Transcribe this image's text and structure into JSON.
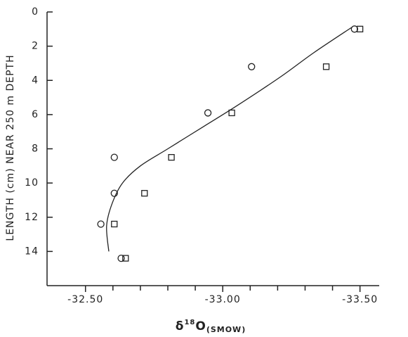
{
  "chart_data": {
    "type": "scatter",
    "ylabel": "LENGTH (cm) NEAR 250 m DEPTH",
    "xlabel": {
      "symbol": "δ",
      "superscript": "18",
      "base": "O",
      "subscript": "(SMOW)"
    },
    "xlim": [
      -32.36,
      -33.57
    ],
    "xticks": [
      {
        "value": -32.5,
        "label": "-32.50"
      },
      {
        "value": -33.0,
        "label": "-33.00"
      },
      {
        "value": -33.5,
        "label": "-33.50"
      }
    ],
    "xminorticks": [
      -32.6,
      -32.7,
      -32.8,
      -32.9,
      -33.1,
      -33.2,
      -33.3,
      -33.4
    ],
    "ylim": [
      0,
      16
    ],
    "yinverted": true,
    "yticks": [
      0,
      2,
      4,
      6,
      8,
      10,
      12,
      14
    ],
    "color": "#222",
    "series": [
      {
        "marker": "circle",
        "x": [
          -33.48,
          -33.105,
          -32.946,
          -32.605,
          -32.605,
          -32.556,
          -32.63
        ],
        "values": [
          1.0,
          3.2,
          5.9,
          8.5,
          10.6,
          12.4,
          14.4
        ]
      },
      {
        "marker": "square",
        "x": [
          -33.5,
          -33.377,
          -33.033,
          -32.813,
          -32.715,
          -32.605,
          -32.646
        ],
        "values": [
          1.0,
          3.2,
          5.9,
          8.5,
          10.6,
          12.4,
          14.4
        ]
      },
      {
        "marker": "line",
        "x": [
          -32.585,
          -32.577,
          -32.597,
          -32.635,
          -32.7,
          -32.8,
          -32.93,
          -33.05,
          -33.21,
          -33.33,
          -33.47
        ],
        "values": [
          14.0,
          12.5,
          11.2,
          10.0,
          9.0,
          8.0,
          6.7,
          5.5,
          3.8,
          2.4,
          0.9
        ]
      }
    ]
  }
}
